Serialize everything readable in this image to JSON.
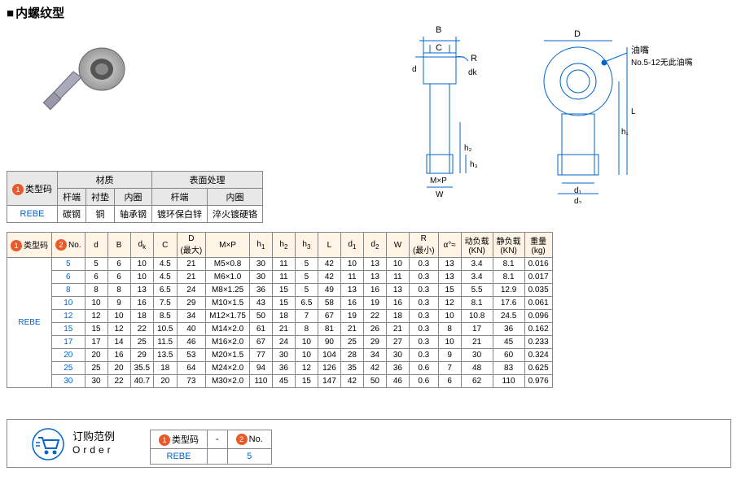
{
  "title": "内螺纹型",
  "diagram": {
    "labels": [
      "B",
      "C",
      "R",
      "d",
      "dk",
      "h2",
      "h3",
      "M×P",
      "W",
      "D",
      "L",
      "h1",
      "d1",
      "d2"
    ],
    "note_title": "油嘴",
    "note": "No.5-12无此油嘴",
    "stroke": "#0066cc"
  },
  "mat": {
    "col1": "类型码",
    "grp1": "材质",
    "grp2": "表面处理",
    "h": [
      "杆端",
      "衬垫",
      "内圈",
      "杆端",
      "内圈"
    ],
    "code": "REBE",
    "vals": [
      "碳钢",
      "铜",
      "轴承钢",
      "镀环保白锌",
      "淬火镀硬铬"
    ]
  },
  "spec": {
    "headers": [
      "类型码",
      "No.",
      "d",
      "B",
      "dk",
      "C",
      "D\n(最大)",
      "M×P",
      "h1",
      "h2",
      "h3",
      "L",
      "d1",
      "d2",
      "W",
      "R\n(最小)",
      "α°≈",
      "动负载\n(KN)",
      "静负载\n(KN)",
      "重量\n(kg)"
    ],
    "code": "REBE",
    "rows": [
      [
        "5",
        "5",
        "6",
        "10",
        "4.5",
        "21",
        "M5×0.8",
        "30",
        "11",
        "5",
        "42",
        "10",
        "13",
        "10",
        "0.3",
        "13",
        "3.4",
        "8.1",
        "0.016"
      ],
      [
        "6",
        "6",
        "6",
        "10",
        "4.5",
        "21",
        "M6×1.0",
        "30",
        "11",
        "5",
        "42",
        "11",
        "13",
        "11",
        "0.3",
        "13",
        "3.4",
        "8.1",
        "0.017"
      ],
      [
        "8",
        "8",
        "8",
        "13",
        "6.5",
        "24",
        "M8×1.25",
        "36",
        "15",
        "5",
        "49",
        "13",
        "16",
        "13",
        "0.3",
        "15",
        "5.5",
        "12.9",
        "0.035"
      ],
      [
        "10",
        "10",
        "9",
        "16",
        "7.5",
        "29",
        "M10×1.5",
        "43",
        "15",
        "6.5",
        "58",
        "16",
        "19",
        "16",
        "0.3",
        "12",
        "8.1",
        "17.6",
        "0.061"
      ],
      [
        "12",
        "12",
        "10",
        "18",
        "8.5",
        "34",
        "M12×1.75",
        "50",
        "18",
        "7",
        "67",
        "19",
        "22",
        "18",
        "0.3",
        "10",
        "10.8",
        "24.5",
        "0.096"
      ],
      [
        "15",
        "15",
        "12",
        "22",
        "10.5",
        "40",
        "M14×2.0",
        "61",
        "21",
        "8",
        "81",
        "21",
        "26",
        "21",
        "0.3",
        "8",
        "17",
        "36",
        "0.162"
      ],
      [
        "17",
        "17",
        "14",
        "25",
        "11.5",
        "46",
        "M16×2.0",
        "67",
        "24",
        "10",
        "90",
        "25",
        "29",
        "27",
        "0.3",
        "10",
        "21",
        "45",
        "0.233"
      ],
      [
        "20",
        "20",
        "16",
        "29",
        "13.5",
        "53",
        "M20×1.5",
        "77",
        "30",
        "10",
        "104",
        "28",
        "34",
        "30",
        "0.3",
        "9",
        "30",
        "60",
        "0.324"
      ],
      [
        "25",
        "25",
        "20",
        "35.5",
        "18",
        "64",
        "M24×2.0",
        "94",
        "36",
        "12",
        "126",
        "35",
        "42",
        "36",
        "0.6",
        "7",
        "48",
        "83",
        "0.625"
      ],
      [
        "30",
        "30",
        "22",
        "40.7",
        "20",
        "73",
        "M30×2.0",
        "110",
        "45",
        "15",
        "147",
        "42",
        "50",
        "46",
        "0.6",
        "6",
        "62",
        "110",
        "0.976"
      ]
    ]
  },
  "order": {
    "label1": "订购范例",
    "label2": "Order",
    "h1": "类型码",
    "h2": "No.",
    "v1": "REBE",
    "v2": "5"
  },
  "colors": {
    "border": "#888888",
    "badge": "#e85a2a",
    "link": "#0066cc",
    "header_bg": "#fff4e6"
  }
}
